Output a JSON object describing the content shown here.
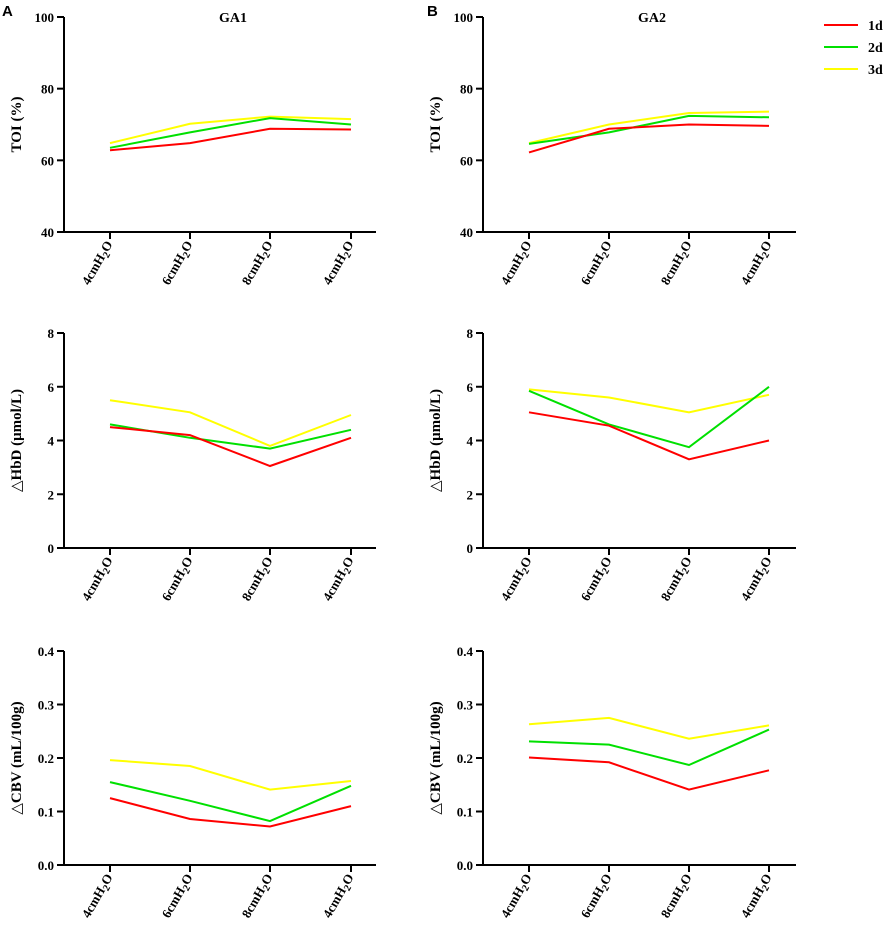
{
  "figure": {
    "panel_letters": [
      "A",
      "B"
    ],
    "column_titles": [
      "GA1",
      "GA2"
    ],
    "legend": [
      {
        "name": "1d",
        "color": "#ff0000"
      },
      {
        "name": "2d",
        "color": "#00e000"
      },
      {
        "name": "3d",
        "color": "#ffff00"
      }
    ]
  },
  "chart_data": [
    {
      "id": "toi-ga1",
      "type": "line",
      "title": "GA1",
      "ylabel": "TOI (%)",
      "xlabel": "",
      "categories": [
        "4cmH2O",
        "6cmH2O",
        "8cmH2O",
        "4cmH2O"
      ],
      "ylim": [
        40,
        100
      ],
      "yticks": [
        "40",
        "60",
        "80",
        "100"
      ],
      "series": [
        {
          "name": "1d",
          "color": "#ff0000",
          "values": [
            62.8,
            64.8,
            68.8,
            68.6
          ]
        },
        {
          "name": "2d",
          "color": "#00e000",
          "values": [
            63.5,
            67.8,
            71.8,
            70.0
          ]
        },
        {
          "name": "3d",
          "color": "#ffff00",
          "values": [
            64.8,
            70.2,
            72.2,
            71.5
          ]
        }
      ]
    },
    {
      "id": "toi-ga2",
      "type": "line",
      "title": "GA2",
      "ylabel": "TOI (%)",
      "xlabel": "",
      "categories": [
        "4cmH2O",
        "6cmH2O",
        "8cmH2O",
        "4cmH2O"
      ],
      "ylim": [
        40,
        100
      ],
      "yticks": [
        "40",
        "60",
        "80",
        "100"
      ],
      "series": [
        {
          "name": "1d",
          "color": "#ff0000",
          "values": [
            62.2,
            68.8,
            70.0,
            69.6
          ]
        },
        {
          "name": "2d",
          "color": "#00e000",
          "values": [
            64.6,
            67.8,
            72.4,
            72.0
          ]
        },
        {
          "name": "3d",
          "color": "#ffff00",
          "values": [
            64.8,
            70.0,
            73.2,
            73.6
          ]
        }
      ]
    },
    {
      "id": "hbd-ga1",
      "type": "line",
      "title": "",
      "ylabel": "△HbD (μmol/L)",
      "xlabel": "",
      "categories": [
        "4cmH2O",
        "6cmH2O",
        "8cmH2O",
        "4cmH2O"
      ],
      "ylim": [
        0,
        8
      ],
      "yticks": [
        "0",
        "2",
        "4",
        "6",
        "8"
      ],
      "series": [
        {
          "name": "1d",
          "color": "#ff0000",
          "values": [
            4.5,
            4.2,
            3.05,
            4.1
          ]
        },
        {
          "name": "2d",
          "color": "#00e000",
          "values": [
            4.6,
            4.1,
            3.7,
            4.4
          ]
        },
        {
          "name": "3d",
          "color": "#ffff00",
          "values": [
            5.5,
            5.05,
            3.8,
            4.95
          ]
        }
      ]
    },
    {
      "id": "hbd-ga2",
      "type": "line",
      "title": "",
      "ylabel": "△HbD (μmol/L)",
      "xlabel": "",
      "categories": [
        "4cmH2O",
        "6cmH2O",
        "8cmH2O",
        "4cmH2O"
      ],
      "ylim": [
        0,
        8
      ],
      "yticks": [
        "0",
        "2",
        "4",
        "6",
        "8"
      ],
      "series": [
        {
          "name": "1d",
          "color": "#ff0000",
          "values": [
            5.05,
            4.55,
            3.3,
            4.0
          ]
        },
        {
          "name": "2d",
          "color": "#00e000",
          "values": [
            5.85,
            4.6,
            3.75,
            6.0
          ]
        },
        {
          "name": "3d",
          "color": "#ffff00",
          "values": [
            5.9,
            5.6,
            5.05,
            5.7
          ]
        }
      ]
    },
    {
      "id": "cbv-ga1",
      "type": "line",
      "title": "",
      "ylabel": "△CBV (mL/100g)",
      "xlabel": "",
      "categories": [
        "4cmH2O",
        "6cmH2O",
        "8cmH2O",
        "4cmH2O"
      ],
      "ylim": [
        0,
        0.4
      ],
      "yticks": [
        "0.0",
        "0.1",
        "0.2",
        "0.3",
        "0.4"
      ],
      "series": [
        {
          "name": "1d",
          "color": "#ff0000",
          "values": [
            0.125,
            0.086,
            0.072,
            0.11
          ]
        },
        {
          "name": "2d",
          "color": "#00e000",
          "values": [
            0.155,
            0.12,
            0.082,
            0.148
          ]
        },
        {
          "name": "3d",
          "color": "#ffff00",
          "values": [
            0.196,
            0.185,
            0.141,
            0.157
          ]
        }
      ]
    },
    {
      "id": "cbv-ga2",
      "type": "line",
      "title": "",
      "ylabel": "△CBV (mL/100g)",
      "xlabel": "",
      "categories": [
        "4cmH2O",
        "6cmH2O",
        "8cmH2O",
        "4cmH2O"
      ],
      "ylim": [
        0,
        0.4
      ],
      "yticks": [
        "0.0",
        "0.1",
        "0.2",
        "0.3",
        "0.4"
      ],
      "series": [
        {
          "name": "1d",
          "color": "#ff0000",
          "values": [
            0.201,
            0.192,
            0.141,
            0.177
          ]
        },
        {
          "name": "2d",
          "color": "#00e000",
          "values": [
            0.231,
            0.225,
            0.187,
            0.253
          ]
        },
        {
          "name": "3d",
          "color": "#ffff00",
          "values": [
            0.263,
            0.275,
            0.236,
            0.261
          ]
        }
      ]
    }
  ]
}
